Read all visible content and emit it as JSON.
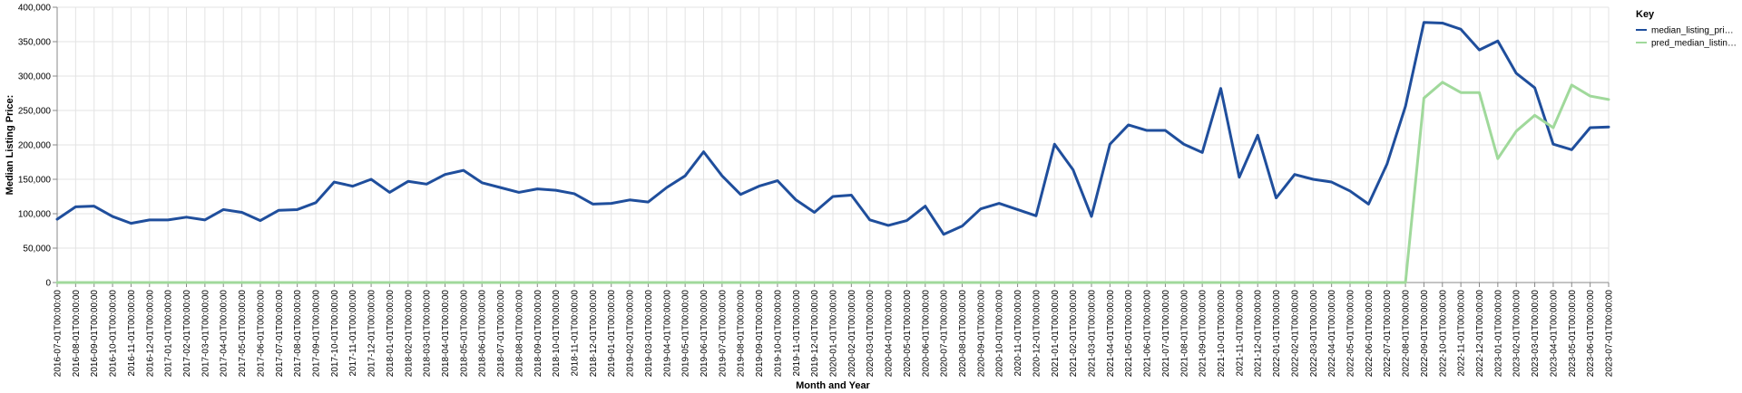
{
  "chart_data": {
    "type": "line",
    "x_label": "Month and Year",
    "y_label": "Median Listing Price:",
    "ylim": [
      0,
      400000
    ],
    "y_ticks": [
      0,
      50000,
      100000,
      150000,
      200000,
      250000,
      300000,
      350000,
      400000
    ],
    "y_tick_labels": [
      "0",
      "50,000",
      "100,000",
      "150,000",
      "200,000",
      "250,000",
      "300,000",
      "350,000",
      "400,000"
    ],
    "grid": true,
    "legend_title": "Key",
    "legend_position": "top-right",
    "categories": [
      "2016-07-01T00:00:00",
      "2016-08-01T00:00:00",
      "2016-09-01T00:00:00",
      "2016-10-01T00:00:00",
      "2016-11-01T00:00:00",
      "2016-12-01T00:00:00",
      "2017-01-01T00:00:00",
      "2017-02-01T00:00:00",
      "2017-03-01T00:00:00",
      "2017-04-01T00:00:00",
      "2017-05-01T00:00:00",
      "2017-06-01T00:00:00",
      "2017-07-01T00:00:00",
      "2017-08-01T00:00:00",
      "2017-09-01T00:00:00",
      "2017-10-01T00:00:00",
      "2017-11-01T00:00:00",
      "2017-12-01T00:00:00",
      "2018-01-01T00:00:00",
      "2018-02-01T00:00:00",
      "2018-03-01T00:00:00",
      "2018-04-01T00:00:00",
      "2018-05-01T00:00:00",
      "2018-06-01T00:00:00",
      "2018-07-01T00:00:00",
      "2018-08-01T00:00:00",
      "2018-09-01T00:00:00",
      "2018-10-01T00:00:00",
      "2018-11-01T00:00:00",
      "2018-12-01T00:00:00",
      "2019-01-01T00:00:00",
      "2019-02-01T00:00:00",
      "2019-03-01T00:00:00",
      "2019-04-01T00:00:00",
      "2019-05-01T00:00:00",
      "2019-06-01T00:00:00",
      "2019-07-01T00:00:00",
      "2019-08-01T00:00:00",
      "2019-09-01T00:00:00",
      "2019-10-01T00:00:00",
      "2019-11-01T00:00:00",
      "2019-12-01T00:00:00",
      "2020-01-01T00:00:00",
      "2020-02-01T00:00:00",
      "2020-03-01T00:00:00",
      "2020-04-01T00:00:00",
      "2020-05-01T00:00:00",
      "2020-06-01T00:00:00",
      "2020-07-01T00:00:00",
      "2020-08-01T00:00:00",
      "2020-09-01T00:00:00",
      "2020-10-01T00:00:00",
      "2020-11-01T00:00:00",
      "2020-12-01T00:00:00",
      "2021-01-01T00:00:00",
      "2021-02-01T00:00:00",
      "2021-03-01T00:00:00",
      "2021-04-01T00:00:00",
      "2021-05-01T00:00:00",
      "2021-06-01T00:00:00",
      "2021-07-01T00:00:00",
      "2021-08-01T00:00:00",
      "2021-09-01T00:00:00",
      "2021-10-01T00:00:00",
      "2021-11-01T00:00:00",
      "2021-12-01T00:00:00",
      "2022-01-01T00:00:00",
      "2022-02-01T00:00:00",
      "2022-03-01T00:00:00",
      "2022-04-01T00:00:00",
      "2022-05-01T00:00:00",
      "2022-06-01T00:00:00",
      "2022-07-01T00:00:00",
      "2022-08-01T00:00:00",
      "2022-09-01T00:00:00",
      "2022-10-01T00:00:00",
      "2022-11-01T00:00:00",
      "2022-12-01T00:00:00",
      "2023-01-01T00:00:00",
      "2023-02-01T00:00:00",
      "2023-03-01T00:00:00",
      "2023-04-01T00:00:00",
      "2023-05-01T00:00:00",
      "2023-06-01T00:00:00",
      "2023-07-01T00:00:00"
    ],
    "series": [
      {
        "name": "median_listing_pri…",
        "color": "#1f4e9c",
        "values": [
          92000,
          110000,
          111000,
          96000,
          86000,
          91000,
          91000,
          95000,
          91000,
          106000,
          102000,
          90000,
          105000,
          106000,
          116000,
          146000,
          140000,
          150000,
          131000,
          147000,
          143000,
          157000,
          163000,
          145000,
          138000,
          131000,
          136000,
          134000,
          129000,
          114000,
          115000,
          120000,
          117000,
          138000,
          155000,
          190000,
          155000,
          128000,
          140000,
          148000,
          120000,
          102000,
          125000,
          127000,
          91000,
          83000,
          90000,
          111000,
          70000,
          82000,
          107000,
          115000,
          106000,
          97000,
          201000,
          164000,
          96000,
          201000,
          229000,
          221000,
          221000,
          201000,
          189000,
          282000,
          153000,
          214000,
          123000,
          157000,
          150000,
          146000,
          133000,
          114000,
          172000,
          256000,
          378000,
          377000,
          368000,
          338000,
          351000,
          304000,
          283000,
          201000,
          193000,
          225000,
          226000
        ]
      },
      {
        "name": "pred_median_listin…",
        "color": "#a0d99b",
        "values": [
          0,
          0,
          0,
          0,
          0,
          0,
          0,
          0,
          0,
          0,
          0,
          0,
          0,
          0,
          0,
          0,
          0,
          0,
          0,
          0,
          0,
          0,
          0,
          0,
          0,
          0,
          0,
          0,
          0,
          0,
          0,
          0,
          0,
          0,
          0,
          0,
          0,
          0,
          0,
          0,
          0,
          0,
          0,
          0,
          0,
          0,
          0,
          0,
          0,
          0,
          0,
          0,
          0,
          0,
          0,
          0,
          0,
          0,
          0,
          0,
          0,
          0,
          0,
          0,
          0,
          0,
          0,
          0,
          0,
          0,
          0,
          0,
          0,
          0,
          268000,
          291000,
          276000,
          276000,
          180000,
          220000,
          243000,
          225000,
          287000,
          271000,
          266000
        ]
      }
    ]
  }
}
